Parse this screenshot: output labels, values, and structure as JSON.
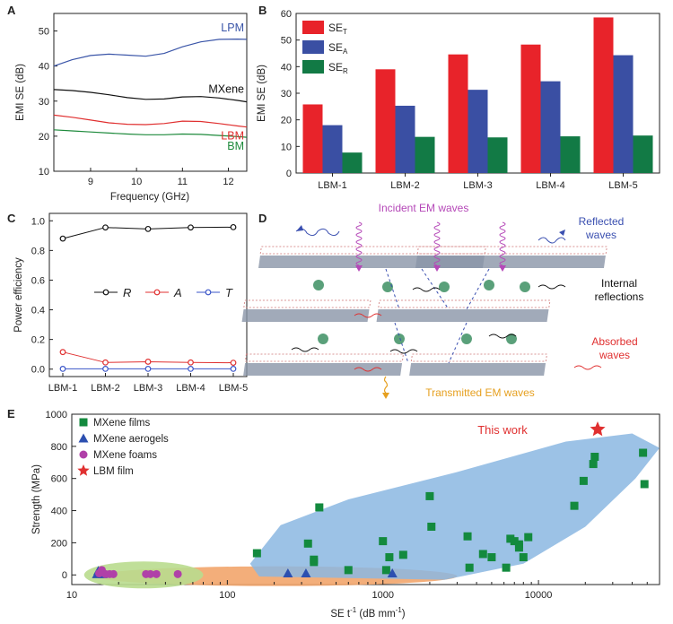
{
  "chart_data": [
    {
      "id": "A",
      "type": "line",
      "panel_label": "A",
      "xlabel": "Frequency (GHz)",
      "ylabel": "EMI SE (dB)",
      "xlim": [
        8.2,
        12.4
      ],
      "ylim": [
        10,
        55
      ],
      "xticks": [
        "9",
        "10",
        "11",
        "12"
      ],
      "yticks": [
        "10",
        "20",
        "30",
        "40",
        "50"
      ],
      "series": [
        {
          "name": "LPM",
          "color": "#3a55a8",
          "x": [
            8.2,
            8.6,
            9.0,
            9.4,
            9.8,
            10.2,
            10.6,
            11.0,
            11.4,
            11.8,
            12.2,
            12.4
          ],
          "y": [
            40,
            41.8,
            43,
            43.4,
            43.1,
            42.8,
            43.6,
            45.5,
            46.9,
            47.6,
            47.7,
            47.6
          ]
        },
        {
          "name": "MXene",
          "color": "#111111",
          "x": [
            8.2,
            8.6,
            9.0,
            9.4,
            9.8,
            10.2,
            10.6,
            11.0,
            11.4,
            11.8,
            12.2,
            12.4
          ],
          "y": [
            33.3,
            33,
            32.5,
            31.8,
            31,
            30.5,
            30.6,
            31.2,
            31.3,
            30.9,
            30.2,
            29.8
          ]
        },
        {
          "name": "LBM",
          "color": "#e03030",
          "x": [
            8.2,
            8.6,
            9.0,
            9.4,
            9.8,
            10.2,
            10.6,
            11.0,
            11.4,
            11.8,
            12.2,
            12.4
          ],
          "y": [
            26,
            25.4,
            24.6,
            23.8,
            23.4,
            23.3,
            23.6,
            24.3,
            24.2,
            23.6,
            22.9,
            22.6
          ]
        },
        {
          "name": "BM",
          "color": "#1e8a3c",
          "x": [
            8.2,
            8.6,
            9.0,
            9.4,
            9.8,
            10.2,
            10.6,
            11.0,
            11.4,
            11.8,
            12.2,
            12.4
          ],
          "y": [
            21.8,
            21.5,
            21.2,
            20.9,
            20.6,
            20.4,
            20.4,
            20.6,
            20.5,
            20.2,
            19.9,
            19.7
          ]
        }
      ]
    },
    {
      "id": "B",
      "type": "bar",
      "panel_label": "B",
      "ylabel": "EMI SE (dB)",
      "ylim": [
        0,
        60
      ],
      "yticks": [
        "0",
        "10",
        "20",
        "30",
        "40",
        "50",
        "60"
      ],
      "categories": [
        "LBM-1",
        "LBM-2",
        "LBM-3",
        "LBM-4",
        "LBM-5"
      ],
      "series": [
        {
          "name": "SE",
          "sub": "T",
          "color": "#e8232a",
          "values": [
            25.8,
            39,
            44.6,
            48.3,
            58.5
          ]
        },
        {
          "name": "SE",
          "sub": "A",
          "color": "#3a4fa3",
          "values": [
            18,
            25.3,
            31.3,
            34.5,
            44.3
          ]
        },
        {
          "name": "SE",
          "sub": "R",
          "color": "#127a45",
          "values": [
            7.7,
            13.6,
            13.4,
            13.8,
            14.1
          ]
        }
      ],
      "legend_position": "top-left"
    },
    {
      "id": "C",
      "type": "line",
      "panel_label": "C",
      "ylabel": "Power efficiency",
      "ylim": [
        -0.05,
        1.05
      ],
      "yticks": [
        "0.0",
        "0.2",
        "0.4",
        "0.6",
        "0.8",
        "1.0"
      ],
      "categories": [
        "LBM-1",
        "LBM-2",
        "LBM-3",
        "LBM-4",
        "LBM-5"
      ],
      "series": [
        {
          "name": "R",
          "color": "#111111",
          "values": [
            0.88,
            0.955,
            0.945,
            0.955,
            0.957
          ]
        },
        {
          "name": "A",
          "color": "#e03030",
          "values": [
            0.115,
            0.045,
            0.05,
            0.045,
            0.043
          ]
        },
        {
          "name": "T",
          "color": "#3a55c8",
          "values": [
            0.002,
            0.002,
            0.002,
            0.002,
            0.002
          ]
        }
      ],
      "legend_position": "center"
    },
    {
      "id": "E",
      "type": "scatter",
      "panel_label": "E",
      "xlabel": "SE t",
      "xlabel_sup": "-1",
      "xlabel_unit": " (dB mm",
      "xlabel_unit_sup": "-1",
      "xlabel_close": ")",
      "ylabel": "Strength (MPa)",
      "xscale": "log",
      "xlim": [
        10,
        60000
      ],
      "ylim": [
        -60,
        1000
      ],
      "xticks": [
        10,
        100,
        1000,
        10000
      ],
      "xtick_labels": [
        "10",
        "100",
        "1000",
        "10000"
      ],
      "yticks": [
        0,
        200,
        400,
        600,
        800,
        1000
      ],
      "ytick_labels": [
        "0",
        "200",
        "400",
        "600",
        "800",
        "1000"
      ],
      "annotation": "This work",
      "series": [
        {
          "name": "MXene films",
          "marker": "square",
          "color": "#138a3e",
          "points": [
            [
              155,
              135
            ],
            [
              330,
              195
            ],
            [
              360,
              95
            ],
            [
              360,
              80
            ],
            [
              390,
              420
            ],
            [
              600,
              30
            ],
            [
              1000,
              210
            ],
            [
              1050,
              30
            ],
            [
              1100,
              110
            ],
            [
              1350,
              125
            ],
            [
              2000,
              490
            ],
            [
              2050,
              300
            ],
            [
              3500,
              240
            ],
            [
              3600,
              45
            ],
            [
              4400,
              130
            ],
            [
              5000,
              110
            ],
            [
              6200,
              45
            ],
            [
              6600,
              225
            ],
            [
              7000,
              210
            ],
            [
              7500,
              190
            ],
            [
              7500,
              170
            ],
            [
              8000,
              110
            ],
            [
              8600,
              235
            ],
            [
              17000,
              430
            ],
            [
              19500,
              585
            ],
            [
              22500,
              690
            ],
            [
              23000,
              735
            ],
            [
              47000,
              760
            ],
            [
              48000,
              565
            ]
          ]
        },
        {
          "name": "MXene aerogels",
          "marker": "triangle",
          "color": "#2c4fb0",
          "points": [
            [
              14.5,
              5
            ],
            [
              14.8,
              25
            ],
            [
              15.3,
              10
            ],
            [
              15.8,
              5
            ],
            [
              245,
              10
            ],
            [
              320,
              10
            ],
            [
              1150,
              10
            ]
          ]
        },
        {
          "name": "MXene foams",
          "marker": "circle",
          "color": "#b040a8",
          "points": [
            [
              15,
              10
            ],
            [
              15.6,
              30
            ],
            [
              16.5,
              5
            ],
            [
              17.5,
              5
            ],
            [
              18.5,
              5
            ],
            [
              30,
              5
            ],
            [
              32,
              5
            ],
            [
              35,
              5
            ],
            [
              48,
              5
            ]
          ]
        },
        {
          "name": "LBM film",
          "marker": "star",
          "color": "#e03030",
          "points": [
            [
              24000,
              905
            ]
          ]
        }
      ]
    }
  ],
  "diagram_D": {
    "panel_label": "D",
    "incident": "Incident EM waves",
    "reflected_1": "Reflected",
    "reflected_2": "waves",
    "internal_1": "Internal",
    "internal_2": "reflections",
    "absorbed_1": "Absorbed",
    "absorbed_2": "waves",
    "transmitted": "Transmitted EM waves",
    "colors": {
      "incident": "#b548b8",
      "reflected": "#3a4fb0",
      "internal": "#111111",
      "absorbed": "#e03030",
      "transmitted": "#e6a020",
      "sheet": "#8a95a8",
      "molecule": "#5aa07a"
    }
  }
}
